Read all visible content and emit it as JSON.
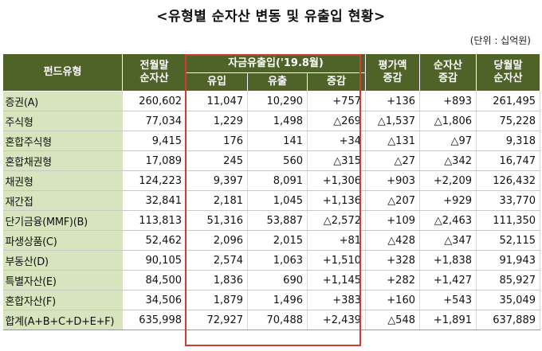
{
  "title": "<유형별 순자산 변동 및 유출입 현황>",
  "unit": "(단위 : 십억원)",
  "headers": {
    "fund_type": "펀드유형",
    "prev_month_1": "전월말",
    "prev_month_2": "순자산",
    "flow_group": "자금유출입('19.8월)",
    "inflow": "유입",
    "outflow": "유출",
    "net": "증감",
    "valuation_1": "평가액",
    "valuation_2": "증감",
    "netasset_change_1": "순자산",
    "netasset_change_2": "증감",
    "current_month_1": "당월말",
    "current_month_2": "순자산"
  },
  "rows": [
    [
      "증권(A)",
      "260,602",
      "11,047",
      "10,290",
      "+757",
      "+136",
      "+893",
      "261,495"
    ],
    [
      "주식형",
      "77,034",
      "1,229",
      "1,498",
      "△269",
      "△1,537",
      "△1,806",
      "75,228"
    ],
    [
      "혼합주식형",
      "9,415",
      "176",
      "141",
      "+34",
      "△131",
      "△97",
      "9,318"
    ],
    [
      "혼합채권형",
      "17,089",
      "245",
      "560",
      "△315",
      "△27",
      "△342",
      "16,747"
    ],
    [
      "채권형",
      "124,223",
      "9,397",
      "8,091",
      "+1,306",
      "+903",
      "+2,209",
      "126,432"
    ],
    [
      "재간접",
      "32,841",
      "2,181",
      "1,045",
      "+1,136",
      "△207",
      "+929",
      "33,770"
    ],
    [
      "단기금융(MMF)(B)",
      "113,813",
      "51,316",
      "53,887",
      "△2,572",
      "+109",
      "△2,463",
      "111,350"
    ],
    [
      "파생상품(C)",
      "52,462",
      "2,096",
      "2,015",
      "+81",
      "△428",
      "△347",
      "52,115"
    ],
    [
      "부동산(D)",
      "90,105",
      "2,574",
      "1,063",
      "+1,510",
      "+328",
      "+1,838",
      "91,943"
    ],
    [
      "특별자산(E)",
      "84,500",
      "1,836",
      "690",
      "+1,145",
      "+282",
      "+1,427",
      "85,927"
    ],
    [
      "혼합자산(F)",
      "34,506",
      "1,879",
      "1,496",
      "+383",
      "+160",
      "+543",
      "35,049"
    ],
    [
      "합계(A+B+C+D+E+F)",
      "635,998",
      "72,927",
      "70,488",
      "+2,439",
      "△548",
      "+1,891",
      "637,889"
    ]
  ]
}
